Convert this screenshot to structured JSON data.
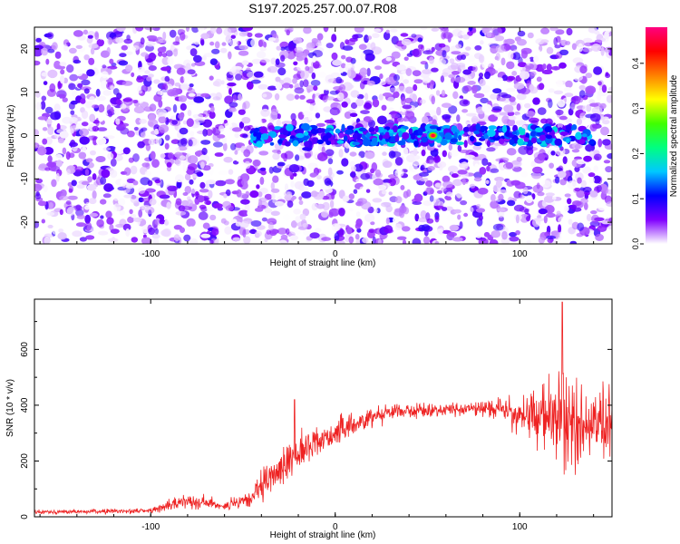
{
  "title": "S197.2025.257.00.07.R08",
  "chart_data": [
    {
      "type": "heatmap",
      "xlabel": "Height of straight line (km)",
      "ylabel": "Frequency (Hz)",
      "xlim": [
        -163,
        150
      ],
      "ylim": [
        -25,
        25
      ],
      "xticks": [
        -100,
        0,
        100
      ],
      "yticks": [
        -20,
        -10,
        0,
        10,
        20
      ],
      "colorbar": {
        "label": "Normalized spectral amplitude",
        "range": [
          0,
          0.48
        ],
        "ticks": [
          "0.0",
          "0.1",
          "0.2",
          "0.3",
          "0.4"
        ],
        "colors": [
          "#ffffff",
          "#8000ff",
          "#0000ff",
          "#00c8ff",
          "#00ff80",
          "#40ff00",
          "#ffff00",
          "#ff8000",
          "#ff0000",
          "#ff0080"
        ]
      },
      "features": [
        {
          "name": "signal band",
          "freq_hz": 0,
          "x_range": [
            -45,
            140
          ],
          "typical_amplitude": 0.12
        },
        {
          "name": "peak",
          "x": 53,
          "freq_hz": 0,
          "amplitude": 0.46
        }
      ]
    },
    {
      "type": "line",
      "xlabel": "Height of straight line (km)",
      "ylabel": "SNR (10 * v/v)",
      "xlim": [
        -163,
        150
      ],
      "ylim": [
        0,
        780
      ],
      "xticks": [
        -100,
        0,
        100
      ],
      "yticks": [
        0,
        200,
        400,
        600
      ],
      "series": [
        {
          "name": "SNR",
          "color": "#ee2222",
          "x": [
            -160,
            -140,
            -120,
            -100,
            -90,
            -80,
            -70,
            -60,
            -50,
            -45,
            -40,
            -35,
            -30,
            -25,
            -20,
            -10,
            0,
            10,
            20,
            30,
            40,
            50,
            60,
            70,
            80,
            90,
            95,
            100,
            105,
            110,
            115,
            120,
            125,
            130,
            135,
            140,
            145,
            150
          ],
          "values": [
            18,
            18,
            20,
            22,
            40,
            60,
            50,
            40,
            50,
            70,
            100,
            140,
            170,
            200,
            230,
            270,
            300,
            330,
            360,
            380,
            380,
            380,
            385,
            385,
            390,
            390,
            375,
            360,
            360,
            360,
            360,
            350,
            340,
            330,
            330,
            320,
            320,
            310
          ],
          "noise": [
            8,
            8,
            10,
            10,
            20,
            30,
            25,
            20,
            30,
            45,
            60,
            70,
            70,
            70,
            65,
            60,
            55,
            45,
            40,
            35,
            30,
            25,
            25,
            25,
            30,
            40,
            60,
            70,
            90,
            120,
            160,
            180,
            190,
            190,
            180,
            170,
            160,
            160
          ]
        }
      ],
      "annotations": [
        {
          "x": -22,
          "value": 420,
          "label": "spike"
        },
        {
          "x": 123,
          "value": 770,
          "label": "max"
        }
      ]
    }
  ]
}
